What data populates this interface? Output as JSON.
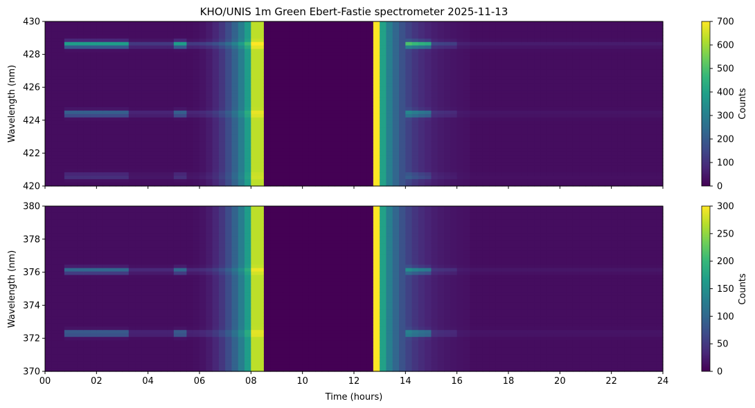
{
  "title": "KHO/UNIS 1m Green Ebert-Fastie spectrometer 2025-11-13",
  "chart_data": [
    {
      "type": "heatmap",
      "panel": "top",
      "ylabel": "Wavelength (nm)",
      "xlabel": "",
      "xlim": [
        0,
        24
      ],
      "ylim": [
        420,
        430
      ],
      "yticks": [
        420,
        422,
        424,
        426,
        428,
        430
      ],
      "ytick_labels": [
        "420",
        "422",
        "424",
        "426",
        "428",
        "430"
      ],
      "xtick_labels_shown": false,
      "colorbar": {
        "label": "Counts",
        "range": [
          0,
          700
        ],
        "ticks": [
          0,
          100,
          200,
          300,
          400,
          500,
          600,
          700
        ],
        "tick_labels": [
          "0",
          "100",
          "200",
          "300",
          "400",
          "500",
          "600",
          "700"
        ],
        "colormap": "viridis"
      },
      "no_data_interval_hours": [
        8.5,
        12.85
      ],
      "saturated_intervals_hours": [
        [
          8.05,
          8.5
        ],
        [
          12.85,
          13.1
        ]
      ],
      "emission_lines_nm": [
        {
          "wavelength": 428.6,
          "intensity": "bright"
        },
        {
          "wavelength": 424.4,
          "intensity": "moderate"
        },
        {
          "wavelength": 420.6,
          "intensity": "weak"
        }
      ]
    },
    {
      "type": "heatmap",
      "panel": "bottom",
      "ylabel": "Wavelength (nm)",
      "xlabel": "Time (hours)",
      "xlim": [
        0,
        24
      ],
      "ylim": [
        370,
        380
      ],
      "yticks": [
        370,
        372,
        374,
        376,
        378,
        380
      ],
      "ytick_labels": [
        "370",
        "372",
        "374",
        "376",
        "378",
        "380"
      ],
      "xticks": [
        0,
        2,
        4,
        6,
        8,
        10,
        12,
        14,
        16,
        18,
        20,
        22,
        24
      ],
      "xtick_labels": [
        "00",
        "02",
        "04",
        "06",
        "08",
        "10",
        "12",
        "14",
        "16",
        "18",
        "20",
        "22",
        "24"
      ],
      "colorbar": {
        "label": "Counts",
        "range": [
          0,
          300
        ],
        "ticks": [
          0,
          50,
          100,
          150,
          200,
          250,
          300
        ],
        "tick_labels": [
          "0",
          "50",
          "100",
          "150",
          "200",
          "250",
          "300"
        ],
        "colormap": "viridis"
      },
      "no_data_interval_hours": [
        8.5,
        12.85
      ],
      "saturated_intervals_hours": [
        [
          8.05,
          8.5
        ],
        [
          12.85,
          13.1
        ]
      ],
      "emission_lines_nm": [
        {
          "wavelength": 376.1,
          "intensity": "moderate"
        },
        {
          "wavelength": 372.3,
          "intensity": "moderate"
        }
      ]
    }
  ]
}
